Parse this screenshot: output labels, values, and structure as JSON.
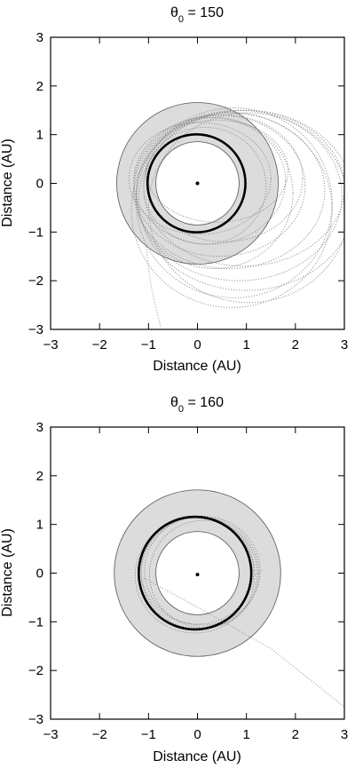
{
  "chart_data": [
    {
      "type": "scatter",
      "title_symbol": "θ",
      "title_subscript": "0",
      "title_rest": " = 150",
      "xlabel": "Distance (AU)",
      "ylabel": "Distance (AU)",
      "xlim": [
        -3,
        3
      ],
      "ylim": [
        -3,
        3
      ],
      "xticks": [
        "−3",
        "−2",
        "−1",
        "0",
        "1",
        "2",
        "3"
      ],
      "yticks": [
        "−3",
        "−2",
        "−1",
        "0",
        "1",
        "2",
        "3"
      ],
      "grid": false,
      "annulus": {
        "inner_radius": 0.85,
        "outer_radius": 1.65,
        "fill": "#dcdcdc",
        "stroke": "#555555"
      },
      "planet_orbit": {
        "center": [
          -0.02,
          0.0
        ],
        "radius": 1.0,
        "color": "#000000"
      },
      "star": {
        "x": 0.0,
        "y": 0.0
      },
      "trajectories": [
        {
          "cx": 0.05,
          "cy": 0.1,
          "rx": 1.45,
          "ry": 1.15
        },
        {
          "cx": 0.25,
          "cy": 0.05,
          "rx": 1.55,
          "ry": 1.3
        },
        {
          "cx": 0.45,
          "cy": -0.05,
          "rx": 1.75,
          "ry": 1.45
        },
        {
          "cx": 0.65,
          "cy": -0.15,
          "rx": 1.95,
          "ry": 1.6
        },
        {
          "cx": 0.85,
          "cy": -0.25,
          "rx": 2.1,
          "ry": 1.75
        },
        {
          "cx": 1.0,
          "cy": -0.35,
          "rx": 2.2,
          "ry": 1.85
        },
        {
          "cx": 0.55,
          "cy": 0.1,
          "rx": 1.6,
          "ry": 1.3
        },
        {
          "cx": 0.35,
          "cy": -0.2,
          "rx": 1.6,
          "ry": 1.55
        },
        {
          "cx": 0.75,
          "cy": -0.4,
          "rx": 2.0,
          "ry": 1.95
        },
        {
          "cx": 0.95,
          "cy": -0.1,
          "rx": 2.05,
          "ry": 1.6
        },
        {
          "cx": 0.15,
          "cy": -0.05,
          "rx": 1.25,
          "ry": 1.2
        },
        {
          "cx": 0.4,
          "cy": 0.25,
          "rx": 1.45,
          "ry": 1.05
        },
        {
          "cx": 0.7,
          "cy": -0.55,
          "rx": 2.05,
          "ry": 2.0
        },
        {
          "cx": 1.05,
          "cy": -0.5,
          "rx": 2.05,
          "ry": 1.95
        }
      ],
      "escape_line": {
        "x": [
          -1.05,
          -0.95,
          -0.85,
          -0.75
        ],
        "y": [
          -1.3,
          -2.1,
          -2.55,
          -2.95
        ]
      }
    },
    {
      "type": "scatter",
      "title_symbol": "θ",
      "title_subscript": "0",
      "title_rest": " = 160",
      "xlabel": "Distance (AU)",
      "ylabel": "Distance (AU)",
      "xlim": [
        -3,
        3
      ],
      "ylim": [
        -3,
        3
      ],
      "xticks": [
        "−3",
        "−2",
        "−1",
        "0",
        "1",
        "2",
        "3"
      ],
      "yticks": [
        "−3",
        "−2",
        "−1",
        "0",
        "1",
        "2",
        "3"
      ],
      "grid": false,
      "annulus": {
        "inner_radius": 0.85,
        "outer_radius": 1.7,
        "fill": "#dcdcdc",
        "stroke": "#555555"
      },
      "planet_orbit": {
        "center": [
          -0.05,
          0.0
        ],
        "radius": 1.15,
        "color": "#000000"
      },
      "star": {
        "x": 0.0,
        "y": -0.03
      },
      "trajectories": [
        {
          "cx": 0.0,
          "cy": 0.05,
          "rx": 1.15,
          "ry": 1.1
        },
        {
          "cx": 0.05,
          "cy": 0.0,
          "rx": 1.2,
          "ry": 1.15
        },
        {
          "cx": 0.1,
          "cy": 0.05,
          "rx": 1.18,
          "ry": 1.12
        },
        {
          "cx": -0.05,
          "cy": -0.05,
          "rx": 1.22,
          "ry": 1.18
        },
        {
          "cx": 0.12,
          "cy": -0.02,
          "rx": 1.1,
          "ry": 1.1
        }
      ],
      "escape_line": {
        "x": [
          -1.1,
          0.0,
          1.5,
          3.0
        ],
        "y": [
          -0.1,
          -0.7,
          -1.55,
          -2.75
        ]
      }
    }
  ]
}
